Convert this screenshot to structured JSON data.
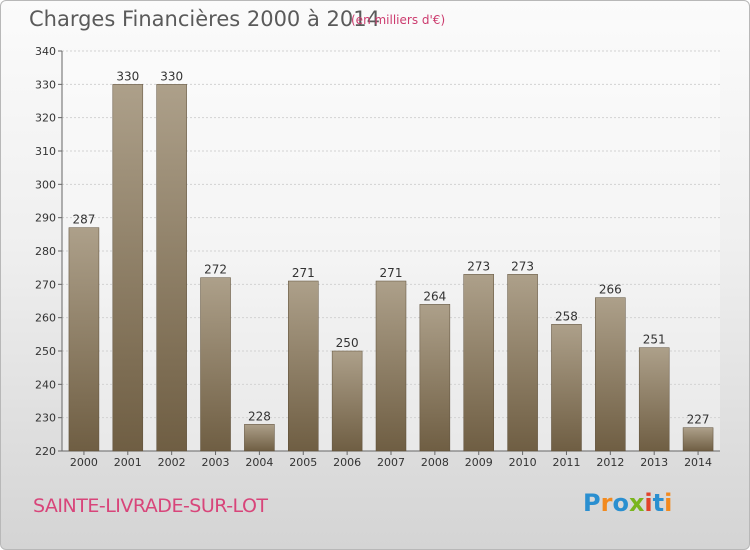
{
  "title": "Charges Financières 2000 à 2014",
  "subtitle": "(en milliers d'€)",
  "commune": "SAINTE-LIVRADE-SUR-LOT",
  "logo": {
    "letters": [
      "P",
      "r",
      "o",
      "x",
      "i",
      "t",
      "i"
    ],
    "colors": [
      "#2a8fd0",
      "#f28a1e",
      "#2a8fd0",
      "#7ab51d",
      "#e2422b",
      "#2a8fd0",
      "#f28a1e"
    ]
  },
  "colors": {
    "bar_top": "#ada08a",
    "bar_bottom": "#6f5e43",
    "grid": "#d2d2d2",
    "axis": "#666666",
    "text": "#333333"
  },
  "chart_data": {
    "type": "bar",
    "categories": [
      "2000",
      "2001",
      "2002",
      "2003",
      "2004",
      "2005",
      "2006",
      "2007",
      "2008",
      "2009",
      "2010",
      "2011",
      "2012",
      "2013",
      "2014"
    ],
    "values": [
      287,
      330,
      330,
      272,
      228,
      271,
      250,
      271,
      264,
      273,
      273,
      258,
      266,
      251,
      227
    ],
    "ylim": [
      220,
      340
    ],
    "yticks": [
      220,
      230,
      240,
      250,
      260,
      270,
      280,
      290,
      300,
      310,
      320,
      330,
      340
    ],
    "grid": true,
    "xlabel": "",
    "ylabel": ""
  }
}
